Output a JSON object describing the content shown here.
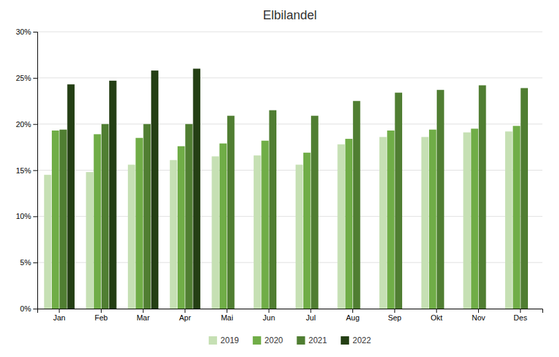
{
  "chart_data": {
    "type": "bar",
    "title": "Elbilandel",
    "categories": [
      "Jan",
      "Feb",
      "Mar",
      "Apr",
      "Mai",
      "Jun",
      "Jul",
      "Aug",
      "Sep",
      "Okt",
      "Nov",
      "Des"
    ],
    "series": [
      {
        "name": "2019",
        "color": "#c6e0b4",
        "values": [
          14.5,
          14.8,
          15.6,
          16.1,
          16.5,
          16.6,
          15.6,
          17.8,
          18.6,
          18.6,
          19.1,
          19.2
        ]
      },
      {
        "name": "2020",
        "color": "#70ad47",
        "values": [
          19.3,
          18.9,
          18.5,
          17.6,
          17.9,
          18.2,
          16.9,
          18.4,
          19.3,
          19.4,
          19.5,
          19.8
        ]
      },
      {
        "name": "2021",
        "color": "#507e32",
        "values": [
          19.4,
          20.0,
          20.0,
          20.0,
          20.9,
          21.5,
          20.9,
          22.5,
          23.4,
          23.7,
          24.2,
          23.9
        ]
      },
      {
        "name": "2022",
        "color": "#243f14",
        "values": [
          24.3,
          24.7,
          25.8,
          26.0,
          null,
          null,
          null,
          null,
          null,
          null,
          null,
          null
        ]
      }
    ],
    "ylim": [
      0,
      30
    ],
    "yticks": [
      {
        "value": 0,
        "label": "0%"
      },
      {
        "value": 5,
        "label": "5%"
      },
      {
        "value": 10,
        "label": "10%"
      },
      {
        "value": 15,
        "label": "15%"
      },
      {
        "value": 20,
        "label": "20%"
      },
      {
        "value": 25,
        "label": "25%"
      },
      {
        "value": 30,
        "label": "30%"
      }
    ],
    "grid": true,
    "legend": "bottom"
  }
}
